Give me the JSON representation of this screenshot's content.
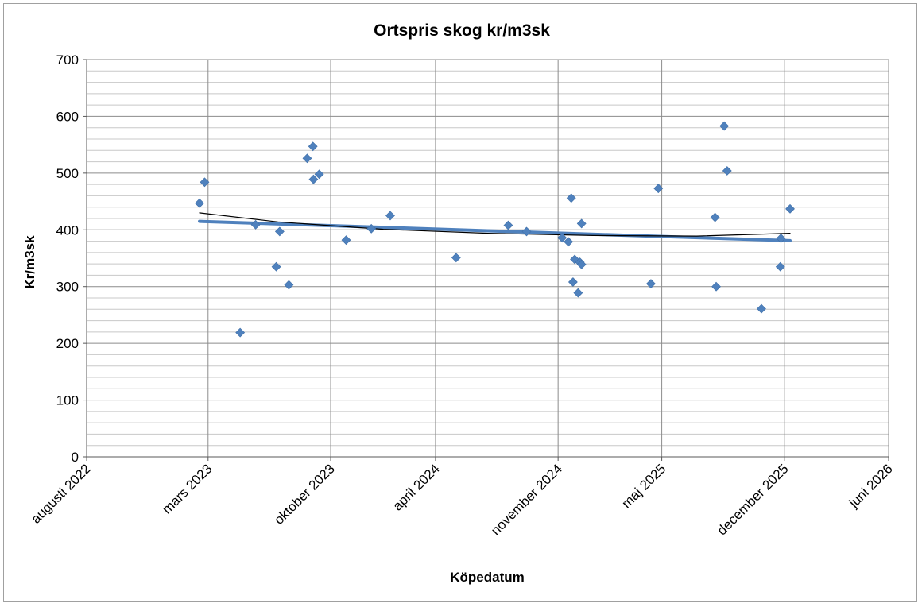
{
  "chart_data": {
    "type": "scatter",
    "title": "Ortspris skog kr/m3sk",
    "xlabel": "Köpedatum",
    "ylabel": "Kr/m3sk",
    "ylim": [
      0,
      700
    ],
    "xlim": [
      "2022-08-01",
      "2026-06-01"
    ],
    "y_ticks": [
      0,
      100,
      200,
      300,
      400,
      500,
      600,
      700
    ],
    "x_ticks": [
      {
        "date": "2022-08-01",
        "label": "augusti 2022"
      },
      {
        "date": "2023-03-01",
        "label": "mars 2023"
      },
      {
        "date": "2023-10-01",
        "label": "oktober 2023"
      },
      {
        "date": "2024-04-01",
        "label": "april 2024"
      },
      {
        "date": "2024-11-01",
        "label": "november 2024"
      },
      {
        "date": "2025-05-01",
        "label": "maj 2025"
      },
      {
        "date": "2025-12-01",
        "label": "december 2025"
      },
      {
        "date": "2026-06-01",
        "label": "juni 2026"
      }
    ],
    "grid": true,
    "marker_color": "#4F81BD",
    "series": [
      {
        "points": [
          {
            "x": "2023-02-14",
            "y": 447
          },
          {
            "x": "2023-02-23",
            "y": 484
          },
          {
            "x": "2023-04-26",
            "y": 219
          },
          {
            "x": "2023-05-23",
            "y": 409
          },
          {
            "x": "2023-06-28",
            "y": 335
          },
          {
            "x": "2023-07-04",
            "y": 397
          },
          {
            "x": "2023-07-20",
            "y": 303
          },
          {
            "x": "2023-08-21",
            "y": 526
          },
          {
            "x": "2023-08-31",
            "y": 547
          },
          {
            "x": "2023-09-01",
            "y": 489
          },
          {
            "x": "2023-09-11",
            "y": 498
          },
          {
            "x": "2023-10-28",
            "y": 382
          },
          {
            "x": "2023-12-11",
            "y": 402
          },
          {
            "x": "2024-01-13",
            "y": 425
          },
          {
            "x": "2024-05-07",
            "y": 351
          },
          {
            "x": "2024-08-06",
            "y": 408
          },
          {
            "x": "2024-09-07",
            "y": 397
          },
          {
            "x": "2024-11-08",
            "y": 386
          },
          {
            "x": "2024-11-19",
            "y": 379
          },
          {
            "x": "2024-11-24",
            "y": 456
          },
          {
            "x": "2024-11-27",
            "y": 308
          },
          {
            "x": "2024-11-30",
            "y": 348
          },
          {
            "x": "2024-12-06",
            "y": 289
          },
          {
            "x": "2024-12-09",
            "y": 343
          },
          {
            "x": "2024-12-12",
            "y": 339
          },
          {
            "x": "2024-12-12",
            "y": 411
          },
          {
            "x": "2025-04-12",
            "y": 305
          },
          {
            "x": "2025-04-25",
            "y": 473
          },
          {
            "x": "2025-08-02",
            "y": 422
          },
          {
            "x": "2025-08-04",
            "y": 300
          },
          {
            "x": "2025-08-18",
            "y": 583
          },
          {
            "x": "2025-08-23",
            "y": 504
          },
          {
            "x": "2025-10-22",
            "y": 261
          },
          {
            "x": "2025-11-24",
            "y": 335
          },
          {
            "x": "2025-11-25",
            "y": 385
          },
          {
            "x": "2025-12-11",
            "y": 437
          }
        ]
      }
    ],
    "trendlines": [
      {
        "kind": "linear",
        "color": "#4F81BD",
        "points": [
          {
            "x": "2023-02-14",
            "y": 415
          },
          {
            "x": "2025-12-11",
            "y": 381
          }
        ]
      },
      {
        "kind": "polynomial",
        "color": "#000000",
        "points": [
          {
            "x": "2023-02-14",
            "y": 430
          },
          {
            "x": "2023-07-01",
            "y": 414
          },
          {
            "x": "2024-01-01",
            "y": 401
          },
          {
            "x": "2024-07-01",
            "y": 394
          },
          {
            "x": "2025-01-01",
            "y": 390
          },
          {
            "x": "2025-07-01",
            "y": 389
          },
          {
            "x": "2025-12-11",
            "y": 394
          }
        ]
      }
    ]
  }
}
